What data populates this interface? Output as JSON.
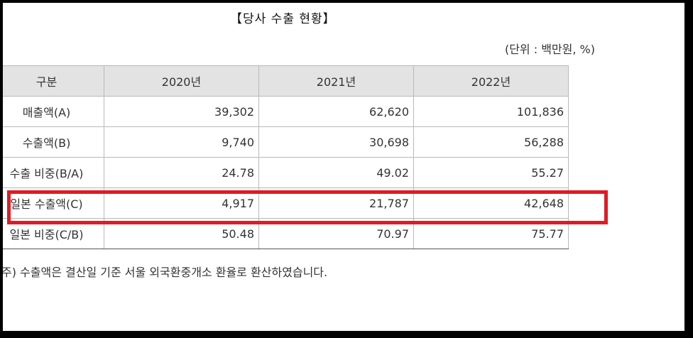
{
  "title": "【당사 수출 현황】",
  "unit": "(단위 : 백만원, %)",
  "table": {
    "headers": [
      "구분",
      "2020년",
      "2021년",
      "2022년"
    ],
    "rows": [
      {
        "label": "매출액(A)",
        "values": [
          "39,302",
          "62,620",
          "101,836"
        ]
      },
      {
        "label": "수출액(B)",
        "values": [
          "9,740",
          "30,698",
          "56,288"
        ]
      },
      {
        "label": "수출 비중(B/A)",
        "values": [
          "24.78",
          "49.02",
          "55.27"
        ]
      },
      {
        "label": "일본 수출액(C)",
        "values": [
          "4,917",
          "21,787",
          "42,648"
        ]
      },
      {
        "label": "일본 비중(C/B)",
        "values": [
          "50.48",
          "70.97",
          "75.77"
        ]
      }
    ]
  },
  "note": "주) 수출액은 결산일 기준 서울 외국환중개소 환율로 환산하였습니다.",
  "colors": {
    "header_bg": "#e3e3e3",
    "highlight": "#e01b24",
    "frame": "#000000"
  }
}
